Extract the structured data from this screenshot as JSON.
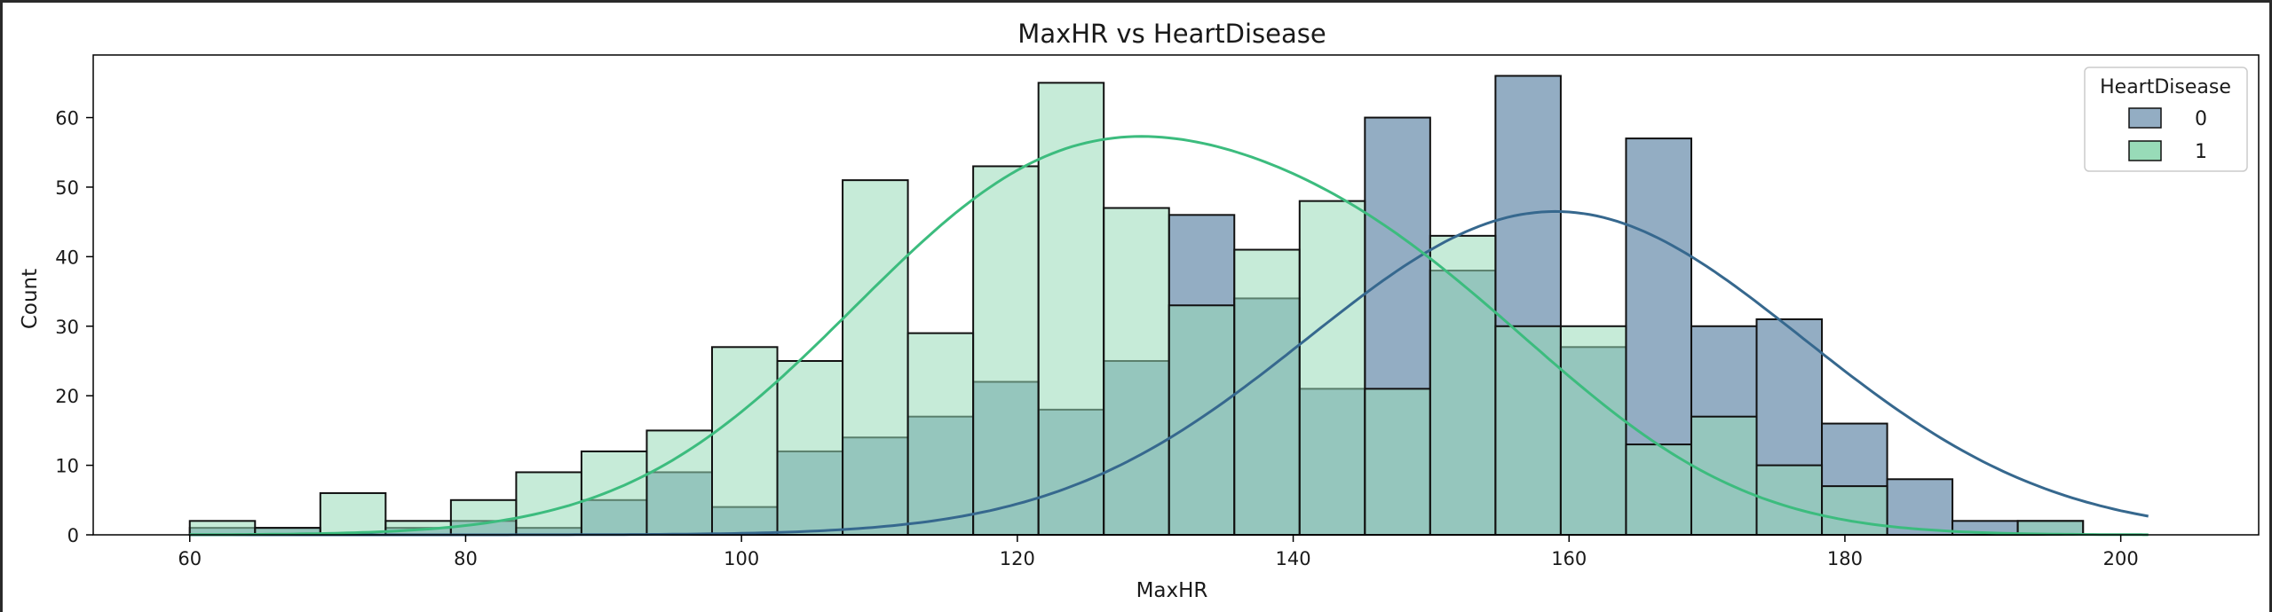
{
  "chart_data": {
    "type": "histogram",
    "title": "MaxHR vs HeartDisease",
    "xlabel": "MaxHR",
    "ylabel": "Count",
    "xlim": [
      53,
      210
    ],
    "ylim": [
      0,
      69
    ],
    "xticks": [
      60,
      80,
      100,
      120,
      140,
      160,
      180,
      200
    ],
    "yticks": [
      0,
      10,
      20,
      30,
      40,
      50,
      60
    ],
    "bin_start": 60,
    "bin_width": 4.7333,
    "legend_title": "HeartDisease",
    "legend_position": "top-right",
    "grid": false,
    "series": [
      {
        "name": "0",
        "color": "#93adc3",
        "kde_color": "#36688e",
        "counts": [
          1,
          1,
          0,
          1,
          2,
          1,
          5,
          9,
          4,
          12,
          14,
          17,
          22,
          18,
          25,
          46,
          34,
          21,
          60,
          38,
          66,
          27,
          57,
          30,
          31,
          16,
          8,
          2,
          2,
          0
        ]
      },
      {
        "name": "1",
        "color": "#98dbb8",
        "kde_color": "#3cbc7e",
        "counts": [
          2,
          1,
          6,
          2,
          5,
          9,
          12,
          15,
          27,
          25,
          51,
          29,
          53,
          65,
          47,
          33,
          41,
          48,
          21,
          43,
          30,
          30,
          13,
          17,
          10,
          7,
          0,
          0,
          2,
          0
        ]
      }
    ],
    "kde": {
      "series_0": {
        "peaks": [
          {
            "mean": 159,
            "sd": 18,
            "peak": 46.5
          }
        ]
      },
      "series_1": {
        "peaks": [
          {
            "mean": 123,
            "sd": 16,
            "peak": 49.5
          },
          {
            "mean": 148,
            "sd": 14,
            "peak": 28
          }
        ]
      }
    }
  }
}
